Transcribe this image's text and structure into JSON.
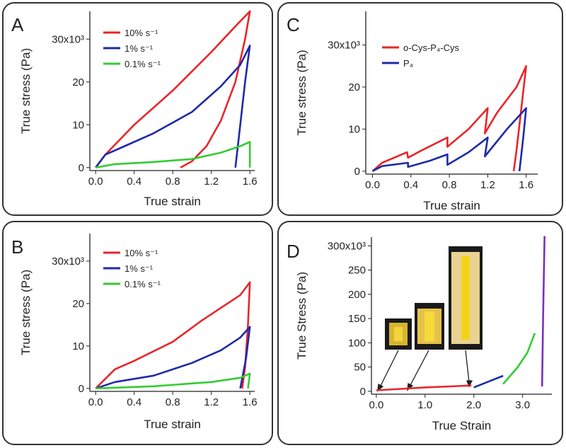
{
  "chart_data": [
    {
      "type": "line",
      "label": "A",
      "x_label": "True strain",
      "y_label": "True stress (Pa)",
      "xlim": [
        -0.06,
        1.65
      ],
      "ylim": [
        -0.7,
        36.5
      ],
      "xticks": [
        {
          "value": 0,
          "label": "0.0"
        },
        0.4,
        0.8,
        1.2,
        1.6
      ],
      "yticks": [
        0,
        10,
        20,
        {
          "value": 30,
          "label": "30x10³"
        }
      ],
      "series": [
        {
          "name": "10% s⁻¹",
          "color": "#e8262a",
          "x": [
            0,
            0.1,
            0.4,
            0.8,
            1.2,
            1.45,
            1.6,
            1.55,
            1.45,
            1.3,
            1.15,
            1.0,
            0.88
          ],
          "values": [
            0,
            3,
            10,
            18,
            27,
            33,
            36.5,
            30,
            20,
            11,
            5,
            1.5,
            0
          ]
        },
        {
          "name": "1% s⁻¹",
          "color": "#1f2aa8",
          "x": [
            0,
            0.1,
            0.3,
            0.6,
            1.0,
            1.3,
            1.5,
            1.6,
            1.55,
            1.5,
            1.45
          ],
          "values": [
            0,
            3,
            5,
            8,
            13,
            19,
            24,
            28.5,
            20,
            10,
            0
          ]
        },
        {
          "name": "0.1% s⁻¹",
          "color": "#33cc33",
          "x": [
            0,
            0.2,
            0.6,
            1.0,
            1.3,
            1.5,
            1.6,
            1.6
          ],
          "values": [
            0,
            0.8,
            1.3,
            2,
            3.5,
            5,
            6,
            0
          ]
        }
      ]
    },
    {
      "type": "line",
      "label": "C",
      "x_label": "True strain",
      "y_label": "True stress (Pa)",
      "xlim": [
        -0.07,
        1.72
      ],
      "ylim": [
        -0.7,
        38
      ],
      "xticks": [
        {
          "value": 0,
          "label": "0.0"
        },
        0.4,
        0.8,
        1.2,
        1.6
      ],
      "yticks": [
        0,
        10,
        20,
        {
          "value": 30,
          "label": "30x10³"
        }
      ],
      "series": [
        {
          "name": "o-Cys-P₄-Cys",
          "color": "#e8262a",
          "x": [
            0,
            0.1,
            0.36,
            0.37,
            0.5,
            0.78,
            0.78,
            1.0,
            1.2,
            1.17,
            1.3,
            1.5,
            1.6,
            1.55,
            1.5,
            1.47
          ],
          "values": [
            0,
            2,
            4.5,
            3.2,
            4.8,
            8,
            5.8,
            10,
            15,
            9,
            14,
            20,
            25,
            15,
            5,
            0
          ]
        },
        {
          "name": "P₄",
          "color": "#1f2aa8",
          "x": [
            0,
            0.1,
            0.37,
            0.37,
            0.6,
            0.78,
            0.78,
            1.0,
            1.2,
            1.17,
            1.4,
            1.6,
            1.57,
            1.53
          ],
          "values": [
            0,
            1.2,
            2,
            1,
            2.5,
            4,
            1.5,
            4.5,
            8,
            3.5,
            10,
            15,
            8,
            0
          ]
        }
      ]
    },
    {
      "type": "line",
      "label": "B",
      "x_label": "True strain",
      "y_label": "True stress (Pa)",
      "xlim": [
        -0.06,
        1.65
      ],
      "ylim": [
        -0.7,
        36.5
      ],
      "xticks": [
        {
          "value": 0,
          "label": "0.0"
        },
        0.4,
        0.8,
        1.2,
        1.6
      ],
      "yticks": [
        0,
        10,
        20,
        {
          "value": 30,
          "label": "30x10³"
        }
      ],
      "series": [
        {
          "name": "10% s⁻¹",
          "color": "#e8262a",
          "x": [
            0,
            0.2,
            0.4,
            0.8,
            1.1,
            1.3,
            1.5,
            1.6,
            1.58,
            1.55,
            1.52
          ],
          "values": [
            0,
            4.5,
            6.5,
            11,
            16,
            19,
            22,
            25,
            15,
            5,
            0
          ]
        },
        {
          "name": "1% s⁻¹",
          "color": "#1f2aa8",
          "x": [
            0,
            0.2,
            0.6,
            1.0,
            1.3,
            1.5,
            1.6,
            1.56,
            1.5
          ],
          "values": [
            0,
            1.5,
            3,
            6,
            9,
            12,
            14.5,
            7,
            0
          ]
        },
        {
          "name": "0.1% s⁻¹",
          "color": "#33cc33",
          "x": [
            0,
            0.6,
            1.2,
            1.5,
            1.6,
            1.58
          ],
          "values": [
            0,
            0.5,
            1.5,
            2.5,
            3.5,
            0
          ]
        }
      ]
    },
    {
      "type": "line",
      "label": "D",
      "x_label": "True Strain",
      "y_label": "True Stress (Pa)",
      "xlim": [
        -0.1,
        3.6
      ],
      "ylim": [
        -6,
        318
      ],
      "xticks": [
        {
          "value": 0,
          "label": "0.0"
        },
        {
          "value": 1,
          "label": "1.0"
        },
        {
          "value": 2,
          "label": "2.0"
        },
        {
          "value": 3,
          "label": "3.0"
        }
      ],
      "yticks": [
        0,
        50,
        100,
        150,
        200,
        250,
        {
          "value": 300,
          "label": "300x10³"
        }
      ],
      "series": [
        {
          "color": "#e8262a",
          "x": [
            0,
            0.5,
            1,
            1.5,
            1.95
          ],
          "values": [
            2,
            5,
            8,
            10,
            12
          ]
        },
        {
          "color": "#1f2aa8",
          "x": [
            2,
            2.3,
            2.6
          ],
          "values": [
            8,
            20,
            32
          ]
        },
        {
          "color": "#33cc33",
          "x": [
            2.6,
            2.9,
            3.1,
            3.25
          ],
          "values": [
            15,
            50,
            80,
            120
          ]
        },
        {
          "color": "#7a2fc0",
          "x": [
            3.4,
            3.42,
            3.45
          ],
          "values": [
            10,
            150,
            320
          ]
        }
      ]
    }
  ]
}
